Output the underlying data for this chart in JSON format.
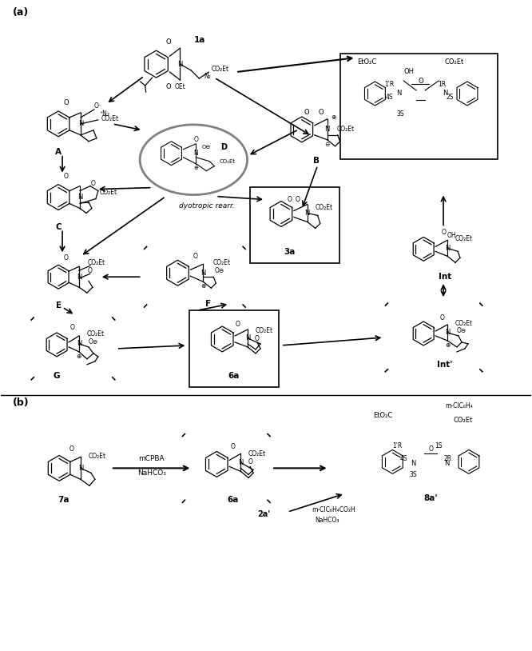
{
  "title_a": "(a)",
  "title_b": "(b)",
  "background_color": "#ffffff",
  "line_color": "#000000",
  "figsize": [
    6.66,
    8.14
  ],
  "dpi": 100,
  "compounds": {
    "1a_label": "1a",
    "A_label": "A",
    "B_label": "B",
    "C_label": "C",
    "D_label": "D",
    "E_label": "E",
    "F_label": "F",
    "G_label": "G",
    "3a_label": "3a",
    "6a_label": "6a",
    "Int_label": "Int",
    "Intp_label": "Int'",
    "7a_label": "7a",
    "8ap_label": "8a'"
  },
  "annotations": {
    "dyotropic_rearr": "dyotropic rearr.",
    "mCPBA": "mCPBA",
    "NaHCO3": "NaHCO₃",
    "mClC6H4CO2H": "m-ClC₆H₄CO₂H",
    "NaHCO3_2": "NaHCO₃",
    "2ap": "2a'"
  },
  "stereocenters_product": [
    "1'R",
    "4S",
    "3S",
    "1R",
    "2S"
  ],
  "stereocenters_8a": [
    "1'R",
    "4S",
    "3S",
    "1S",
    "2R"
  ]
}
